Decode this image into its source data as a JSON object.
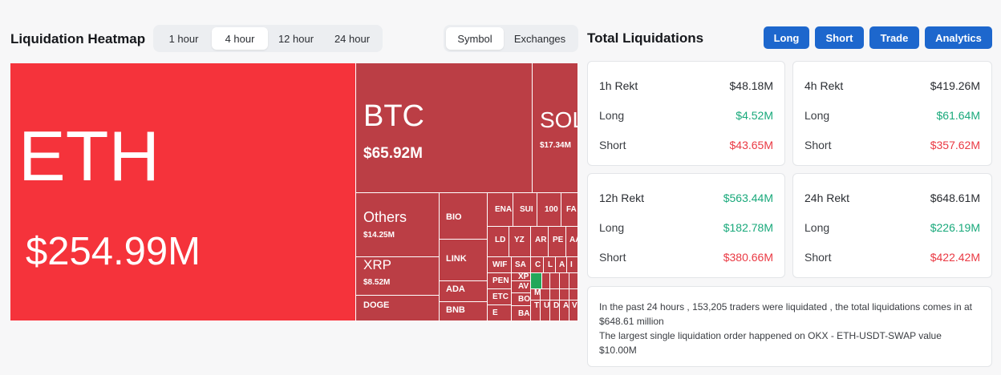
{
  "heatmap": {
    "title": "Liquidation Heatmap",
    "time_tabs": [
      "1 hour",
      "4 hour",
      "12 hour",
      "24 hour"
    ],
    "active_time_tab": "4 hour",
    "view_tabs": [
      "Symbol",
      "Exchanges"
    ],
    "active_view_tab": "Symbol",
    "cells": {
      "eth": {
        "symbol": "ETH",
        "value": "$254.99M",
        "color": "#f5333b"
      },
      "btc": {
        "symbol": "BTC",
        "value": "$65.92M"
      },
      "sol": {
        "symbol": "SOL",
        "value": "$17.34M"
      },
      "others": {
        "symbol": "Others",
        "value": "$14.25M"
      },
      "xrp": {
        "symbol": "XRP",
        "value": "$8.52M"
      },
      "doge": {
        "symbol": "DOGE"
      },
      "bio": {
        "symbol": "BIO"
      },
      "link": {
        "symbol": "LINK"
      },
      "ada": {
        "symbol": "ADA"
      },
      "bnb": {
        "symbol": "BNB"
      }
    },
    "small_cells": [
      "ENA",
      "SUI",
      "100",
      "FA",
      "LD",
      "YZ",
      "AR",
      "PE",
      "AA",
      "WIF",
      "SA",
      "C",
      "L",
      "A",
      "I",
      "PEN",
      "XP",
      "ETC",
      "AV",
      "M",
      "BO",
      "E",
      "BAN",
      "TR",
      "U",
      "D",
      "A",
      "V"
    ],
    "cell_color": "#bb3e45",
    "green_color": "#23a75a"
  },
  "totals": {
    "title": "Total Liquidations",
    "buttons": [
      "Long",
      "Short",
      "Trade",
      "Analytics"
    ],
    "cards": [
      {
        "label": "1h Rekt",
        "total": "$48.18M",
        "long_label": "Long",
        "long": "$4.52M",
        "short_label": "Short",
        "short": "$43.65M"
      },
      {
        "label": "4h Rekt",
        "total": "$419.26M",
        "long_label": "Long",
        "long": "$61.64M",
        "short_label": "Short",
        "short": "$357.62M"
      },
      {
        "label": "12h Rekt",
        "total": "$563.44M",
        "long_label": "Long",
        "long": "$182.78M",
        "short_label": "Short",
        "short": "$380.66M"
      },
      {
        "label": "24h Rekt",
        "total": "$648.61M",
        "long_label": "Long",
        "long": "$226.19M",
        "short_label": "Short",
        "short": "$422.42M"
      }
    ],
    "summary_line1": "In the past 24 hours , 153,205 traders were liquidated , the total liquidations comes in at $648.61 million",
    "summary_line2": "The largest single liquidation order happened on OKX - ETH-USDT-SWAP value $10.00M"
  },
  "colors": {
    "accent": "#1d67cd",
    "long": "#19a97b",
    "short": "#ea3943"
  }
}
